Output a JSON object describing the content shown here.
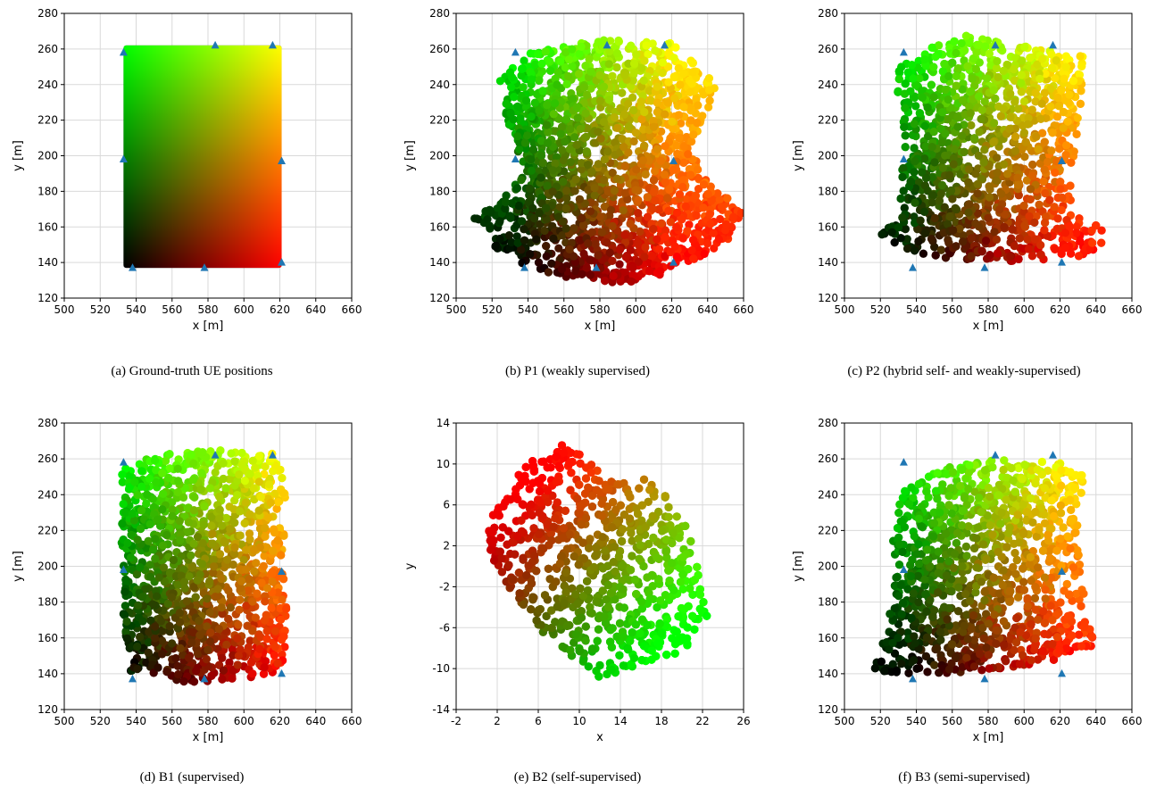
{
  "figure": {
    "background": "#ffffff",
    "marker_color": "#1f77b4",
    "grid_color": "#d9d9d9"
  },
  "chart_data": [
    {
      "id": "a",
      "type": "scatter",
      "caption": "(a) Ground-truth UE positions",
      "xlabel": "x [m]",
      "ylabel": "y [m]",
      "xlim": [
        500,
        660
      ],
      "ylim": [
        120,
        280
      ],
      "xticks": [
        500,
        520,
        540,
        560,
        580,
        600,
        620,
        640,
        660
      ],
      "yticks": [
        120,
        140,
        160,
        180,
        200,
        220,
        240,
        260,
        280
      ],
      "grid": true,
      "points_style": "dense colored cloud",
      "region": {
        "shape": "rectangle",
        "x": [
          533,
          621
        ],
        "y": [
          137,
          262
        ]
      },
      "anchors": [
        [
          533,
          258
        ],
        [
          584,
          262
        ],
        [
          616,
          262
        ],
        [
          533,
          198
        ],
        [
          621,
          197
        ],
        [
          538,
          137
        ],
        [
          578,
          137
        ],
        [
          621,
          140
        ]
      ]
    },
    {
      "id": "b",
      "type": "scatter",
      "caption": "(b) P1 (weakly supervised)",
      "xlabel": "x [m]",
      "ylabel": "y [m]",
      "xlim": [
        500,
        660
      ],
      "ylim": [
        120,
        280
      ],
      "xticks": [
        500,
        520,
        540,
        560,
        580,
        600,
        620,
        640,
        660
      ],
      "yticks": [
        120,
        140,
        160,
        180,
        200,
        220,
        240,
        260,
        280
      ],
      "grid": true,
      "region": {
        "shape": "blob",
        "x": [
          510,
          660
        ],
        "y": [
          127,
          265
        ],
        "outline": [
          [
            522,
            240
          ],
          [
            540,
            258
          ],
          [
            580,
            265
          ],
          [
            620,
            264
          ],
          [
            645,
            240
          ],
          [
            640,
            225
          ],
          [
            630,
            205
          ],
          [
            640,
            185
          ],
          [
            660,
            170
          ],
          [
            650,
            150
          ],
          [
            620,
            135
          ],
          [
            595,
            128
          ],
          [
            560,
            132
          ],
          [
            538,
            138
          ],
          [
            520,
            150
          ],
          [
            510,
            165
          ],
          [
            525,
            175
          ],
          [
            538,
            192
          ],
          [
            530,
            215
          ]
        ]
      },
      "anchors": [
        [
          533,
          258
        ],
        [
          584,
          262
        ],
        [
          616,
          262
        ],
        [
          533,
          198
        ],
        [
          621,
          197
        ],
        [
          538,
          137
        ],
        [
          578,
          137
        ],
        [
          621,
          140
        ]
      ]
    },
    {
      "id": "c",
      "type": "scatter",
      "caption": "(c) P2 (hybrid self- and weakly-supervised)",
      "xlabel": "x [m]",
      "ylabel": "y [m]",
      "xlim": [
        500,
        660
      ],
      "ylim": [
        120,
        280
      ],
      "xticks": [
        500,
        520,
        540,
        560,
        580,
        600,
        620,
        640,
        660
      ],
      "yticks": [
        120,
        140,
        160,
        180,
        200,
        220,
        240,
        260,
        280
      ],
      "grid": true,
      "region": {
        "shape": "blob",
        "x": [
          518,
          648
        ],
        "y": [
          140,
          268
        ],
        "outline": [
          [
            524,
            245
          ],
          [
            545,
            260
          ],
          [
            565,
            268
          ],
          [
            600,
            262
          ],
          [
            633,
            256
          ],
          [
            632,
            235
          ],
          [
            630,
            215
          ],
          [
            626,
            185
          ],
          [
            628,
            168
          ],
          [
            645,
            160
          ],
          [
            648,
            150
          ],
          [
            630,
            143
          ],
          [
            595,
            140
          ],
          [
            560,
            142
          ],
          [
            540,
            145
          ],
          [
            520,
            155
          ],
          [
            530,
            165
          ],
          [
            532,
            190
          ],
          [
            533,
            225
          ]
        ]
      },
      "anchors": [
        [
          533,
          258
        ],
        [
          584,
          262
        ],
        [
          616,
          262
        ],
        [
          533,
          198
        ],
        [
          621,
          197
        ],
        [
          538,
          137
        ],
        [
          578,
          137
        ],
        [
          621,
          140
        ]
      ]
    },
    {
      "id": "d",
      "type": "scatter",
      "caption": "(d) B1 (supervised)",
      "xlabel": "x [m]",
      "ylabel": "y [m]",
      "xlim": [
        500,
        660
      ],
      "ylim": [
        120,
        280
      ],
      "xticks": [
        500,
        520,
        540,
        560,
        580,
        600,
        620,
        640,
        660
      ],
      "yticks": [
        120,
        140,
        160,
        180,
        200,
        220,
        240,
        260,
        280
      ],
      "grid": true,
      "region": {
        "shape": "blob",
        "x": [
          532,
          624
        ],
        "y": [
          135,
          265
        ],
        "outline": [
          [
            532,
            255
          ],
          [
            550,
            262
          ],
          [
            585,
            265
          ],
          [
            620,
            263
          ],
          [
            623,
            240
          ],
          [
            622,
            200
          ],
          [
            624,
            170
          ],
          [
            622,
            142
          ],
          [
            600,
            137
          ],
          [
            575,
            135
          ],
          [
            550,
            137
          ],
          [
            536,
            141
          ],
          [
            533,
            170
          ],
          [
            532,
            210
          ]
        ]
      },
      "anchors": [
        [
          533,
          258
        ],
        [
          584,
          262
        ],
        [
          616,
          262
        ],
        [
          533,
          198
        ],
        [
          621,
          197
        ],
        [
          538,
          137
        ],
        [
          578,
          137
        ],
        [
          621,
          140
        ]
      ]
    },
    {
      "id": "e",
      "type": "scatter",
      "caption": "(e) B2 (self-supervised)",
      "xlabel": "x",
      "ylabel": "y",
      "xlim": [
        -2,
        26
      ],
      "ylim": [
        -14,
        14
      ],
      "xticks": [
        -2,
        2,
        6,
        10,
        14,
        18,
        22,
        26
      ],
      "yticks": [
        -14,
        -10,
        -6,
        -2,
        2,
        6,
        10,
        14
      ],
      "grid": true,
      "region": {
        "shape": "blob",
        "x": [
          1,
          23
        ],
        "y": [
          -11,
          12.5
        ],
        "outline": [
          [
            1.5,
            5.5
          ],
          [
            4,
            9
          ],
          [
            7.5,
            12.5
          ],
          [
            10,
            11
          ],
          [
            13,
            8.5
          ],
          [
            17,
            8.5
          ],
          [
            20,
            5
          ],
          [
            21.5,
            1
          ],
          [
            22.5,
            -5
          ],
          [
            20,
            -8.5
          ],
          [
            16,
            -9.5
          ],
          [
            12,
            -11
          ],
          [
            8,
            -8
          ],
          [
            5,
            -5
          ],
          [
            2.5,
            -1
          ],
          [
            1,
            2
          ]
        ]
      },
      "anchors": []
    },
    {
      "id": "f",
      "type": "scatter",
      "caption": "(f) B3 (semi-supervised)",
      "xlabel": "x [m]",
      "ylabel": "y [m]",
      "xlim": [
        500,
        660
      ],
      "ylim": [
        120,
        280
      ],
      "xticks": [
        500,
        520,
        540,
        560,
        580,
        600,
        620,
        640,
        660
      ],
      "yticks": [
        120,
        140,
        160,
        180,
        200,
        220,
        240,
        260,
        280
      ],
      "grid": true,
      "region": {
        "shape": "blob",
        "x": [
          515,
          642
        ],
        "y": [
          138,
          262
        ],
        "outline": [
          [
            530,
            240
          ],
          [
            555,
            255
          ],
          [
            585,
            260
          ],
          [
            620,
            258
          ],
          [
            635,
            250
          ],
          [
            630,
            225
          ],
          [
            632,
            195
          ],
          [
            635,
            175
          ],
          [
            640,
            155
          ],
          [
            620,
            148
          ],
          [
            590,
            142
          ],
          [
            555,
            140
          ],
          [
            525,
            140
          ],
          [
            515,
            142
          ],
          [
            522,
            160
          ],
          [
            528,
            185
          ],
          [
            526,
            215
          ]
        ]
      },
      "anchors": [
        [
          533,
          258
        ],
        [
          584,
          262
        ],
        [
          616,
          262
        ],
        [
          533,
          198
        ],
        [
          621,
          197
        ],
        [
          538,
          137
        ],
        [
          578,
          137
        ],
        [
          621,
          140
        ]
      ]
    }
  ]
}
